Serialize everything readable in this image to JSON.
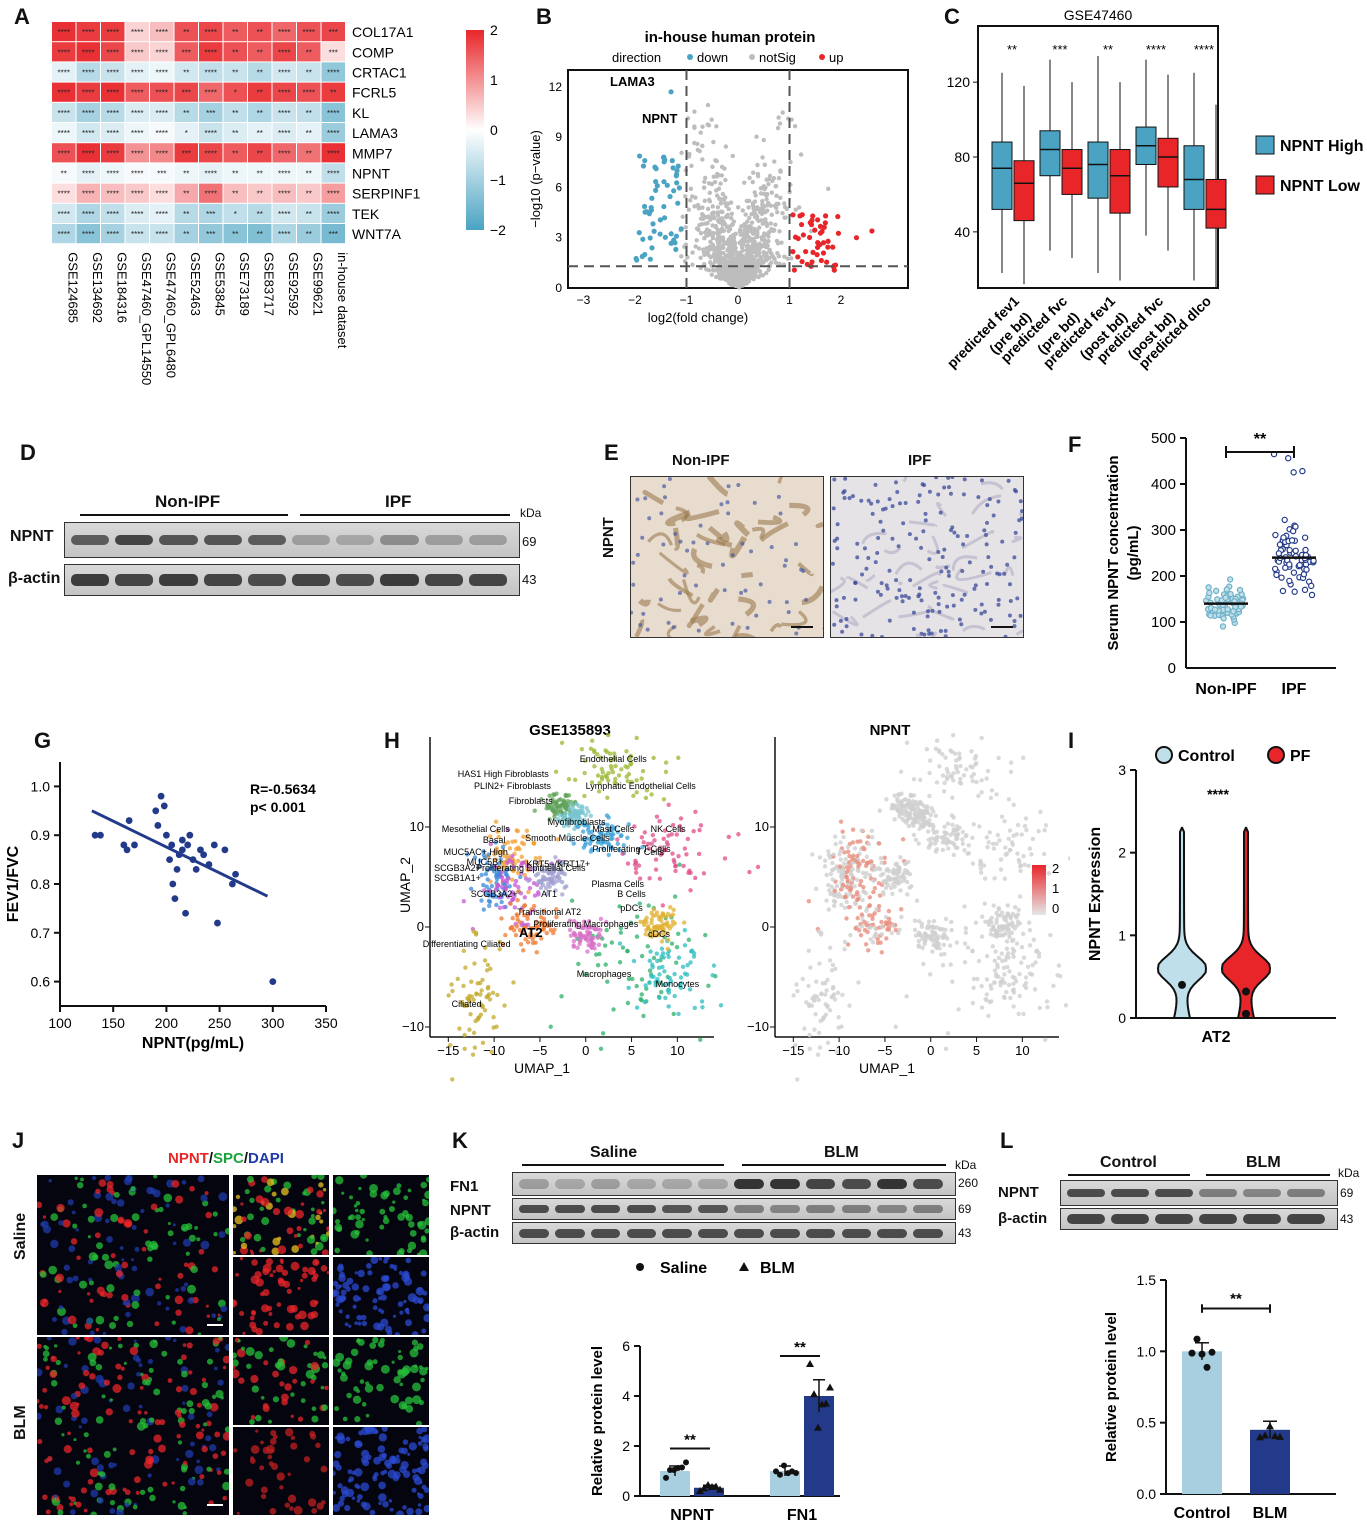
{
  "panels": {
    "A": {
      "label": "A",
      "genes": [
        "COL17A1",
        "COMP",
        "CRTAC1",
        "FCRL5",
        "KL",
        "LAMA3",
        "MMP7",
        "NPNT",
        "SERPINF1",
        "TEK",
        "WNT7A"
      ],
      "datasets": [
        "GSE124685",
        "GSE134692",
        "GSE184316",
        "GSE47460_GPL14550",
        "GSE47460_GPL6480",
        "GSE52463",
        "GSE53845",
        "GSE73189",
        "GSE83717",
        "GSE92592",
        "GSE99621",
        "in-house dataset"
      ],
      "values": [
        [
          1.9,
          1.8,
          1.8,
          0.4,
          0.6,
          1.6,
          1.7,
          1.5,
          1.6,
          1.4,
          1.6,
          1.7
        ],
        [
          1.8,
          1.9,
          1.7,
          0.5,
          0.4,
          1.5,
          1.8,
          1.6,
          1.5,
          1.7,
          1.5,
          0.3
        ],
        [
          -0.3,
          -0.8,
          -0.6,
          -0.3,
          -0.2,
          -0.5,
          -0.7,
          -0.6,
          -0.8,
          -0.5,
          -0.6,
          -1.2
        ],
        [
          1.9,
          1.8,
          1.9,
          1.5,
          1.6,
          1.7,
          1.4,
          1.6,
          1.8,
          1.7,
          1.6,
          1.8
        ],
        [
          -0.6,
          -1.0,
          -0.8,
          -0.4,
          -0.4,
          -0.8,
          -1.0,
          -0.7,
          -0.9,
          -0.6,
          -0.7,
          -1.3
        ],
        [
          -0.2,
          -0.5,
          -0.4,
          -0.2,
          -0.1,
          -0.3,
          -0.6,
          -0.4,
          -0.3,
          -0.4,
          -0.3,
          -1.1
        ],
        [
          1.6,
          1.9,
          1.8,
          1.0,
          1.1,
          1.8,
          1.7,
          1.5,
          1.7,
          1.4,
          1.3,
          1.9
        ],
        [
          -0.1,
          -0.3,
          -0.2,
          -0.1,
          -0.1,
          -0.2,
          -0.3,
          -0.2,
          -0.2,
          -0.2,
          -0.2,
          -0.7
        ],
        [
          0.3,
          0.7,
          0.6,
          0.5,
          0.3,
          0.8,
          1.3,
          0.6,
          0.5,
          0.6,
          0.5,
          0.9
        ],
        [
          -0.5,
          -0.9,
          -0.7,
          -0.4,
          -0.3,
          -0.8,
          -0.9,
          -0.7,
          -0.8,
          -0.5,
          -0.6,
          -1.1
        ],
        [
          -0.9,
          -1.3,
          -1.0,
          -0.6,
          -0.6,
          -1.0,
          -1.2,
          -1.3,
          -1.4,
          -0.9,
          -1.1,
          -1.5
        ]
      ],
      "stars": [
        [
          "****",
          "****",
          "****",
          "****",
          "****",
          "**",
          "****",
          "**",
          "**",
          "****",
          "****",
          "***"
        ],
        [
          "****",
          "****",
          "****",
          "****",
          "****",
          "***",
          "****",
          "**",
          "**",
          "****",
          "**",
          "***"
        ],
        [
          "****",
          "****",
          "****",
          "****",
          "****",
          "**",
          "****",
          "**",
          "**",
          "****",
          "**",
          "****"
        ],
        [
          "****",
          "****",
          "****",
          "****",
          "****",
          "***",
          "****",
          "*",
          "**",
          "****",
          "****",
          "**"
        ],
        [
          "****",
          "****",
          "****",
          "****",
          "****",
          "**",
          "***",
          "**",
          "**",
          "****",
          "**",
          "****"
        ],
        [
          "****",
          "****",
          "****",
          "****",
          "****",
          "*",
          "****",
          "**",
          "**",
          "****",
          "**",
          "****"
        ],
        [
          "****",
          "****",
          "****",
          "****",
          "****",
          "***",
          "****",
          "**",
          "**",
          "****",
          "**",
          "****"
        ],
        [
          "**",
          "****",
          "****",
          "****",
          "***",
          "**",
          "****",
          "**",
          "**",
          "****",
          "**",
          "****"
        ],
        [
          "****",
          "****",
          "****",
          "****",
          "****",
          "**",
          "****",
          "**",
          "**",
          "****",
          "**",
          "****"
        ],
        [
          "****",
          "****",
          "****",
          "****",
          "****",
          "**",
          "***",
          "*",
          "**",
          "****",
          "**",
          "****"
        ],
        [
          "****",
          "****",
          "****",
          "****",
          "****",
          "**",
          "***",
          "**",
          "**",
          "****",
          "**",
          "***"
        ]
      ],
      "legend_ticks": [
        "2",
        "1",
        "0",
        "−1",
        "−2"
      ],
      "colors": {
        "low": "#4aa3c2",
        "mid": "#ffffff",
        "high": "#e8262a"
      }
    },
    "B": {
      "label": "B",
      "title": "in-house human protein",
      "legend_title": "direction",
      "legend_items": [
        "down",
        "notSig",
        "up"
      ],
      "xlabel": "log2(fold change)",
      "ylabel": "−log10 (p−value)",
      "xticks": [
        "−3",
        "−2",
        "−1",
        "0",
        "1",
        "2"
      ],
      "yticks": [
        "0",
        "3",
        "6",
        "9",
        "12"
      ],
      "annotations": [
        "LAMA3",
        "NPNT"
      ],
      "colors": {
        "down": "#4aa3c2",
        "notSig": "#bdbdbd",
        "up": "#e8262a"
      }
    },
    "C": {
      "label": "C",
      "title": "GSE47460",
      "yticks": [
        "40",
        "80",
        "120"
      ],
      "categories": [
        "predicted fev1\n(pre bd)",
        "predicted fvc\n(pre bd)",
        "predicted fev1\n(post bd)",
        "predicted fvc\n(post bd)",
        "predicted dlco"
      ],
      "cat_line1": [
        "predicted fev1",
        "predicted fvc",
        "predicted fev1",
        "predicted fvc",
        "predicted dlco"
      ],
      "cat_line2": [
        "(pre bd)",
        "(pre bd)",
        "(post bd)",
        "(post bd)",
        ""
      ],
      "sig": [
        "**",
        "***",
        "**",
        "****",
        "****"
      ],
      "legend": [
        "NPNT High",
        "NPNT Low"
      ],
      "colors": {
        "high": "#4aa3c2",
        "low": "#e8262a"
      }
    },
    "D": {
      "label": "D",
      "group1": "Non-IPF",
      "group2": "IPF",
      "rows": [
        "NPNT",
        "β-actin"
      ],
      "kda_label": "kDa",
      "kda": [
        "69",
        "43"
      ]
    },
    "E": {
      "label": "E",
      "col1": "Non-IPF",
      "col2": "IPF",
      "row": "NPNT"
    },
    "F": {
      "label": "F",
      "ylabel": "Serum NPNT concentration\n(pg/mL)",
      "ylabel1": "Serum NPNT concentration",
      "ylabel2": "(pg/mL)",
      "yticks": [
        "100",
        "200",
        "300",
        "400",
        "500"
      ],
      "categories": [
        "Non-IPF",
        "IPF"
      ],
      "sig": "**",
      "means": [
        140,
        240
      ]
    },
    "G": {
      "label": "G",
      "ylabel": "FEV1/FVC",
      "xlabel": "NPNT(pg/mL)",
      "xticks": [
        "100",
        "150",
        "200",
        "250",
        "300",
        "350"
      ],
      "yticks": [
        "0.6",
        "0.7",
        "0.8",
        "0.9",
        "1.0"
      ],
      "stat1": "R=-0.5634",
      "stat2": "p< 0.001"
    },
    "H": {
      "label": "H",
      "title_left": "GSE135893",
      "title_right": "NPNT",
      "xlabel": "UMAP_1",
      "ylabel": "UMAP_2",
      "xticks": [
        "−15",
        "−10",
        "−5",
        "0",
        "5",
        "10"
      ],
      "yticks": [
        "10",
        "0",
        "−10"
      ],
      "clusters": [
        "Endothelial Cells",
        "HAS1 High Fibroblasts",
        "PLIN2+ Fibroblasts",
        "Lymphatic Endothelial Cells",
        "Fibroblasts",
        "Mesothelial Cells",
        "Myofibroblasts",
        "Mast Cells",
        "NK Cells",
        "Smooth Muscle Cells",
        "Basal",
        "MUC5AC+ High",
        "Proliferating T Cells",
        "T Cells",
        "MUC5B+",
        "KRT5−/KRT17+",
        "SCGB3A2+",
        "Proliferating Epithelial Cells",
        "SCGB1A1+",
        "Plasma Cells",
        "AT1",
        "B Cells",
        "SCGB3A2+",
        "pDCs",
        "Transitional AT2",
        "AT2",
        "cDCs",
        "Proliferating Macrophages",
        "Differentiating Ciliated",
        "Macrophages",
        "Monocytes",
        "Ciliated"
      ],
      "scale_ticks": [
        "2",
        "1",
        "0"
      ]
    },
    "I": {
      "label": "I",
      "legend": [
        "Control",
        "PF"
      ],
      "ylabel": "NPNT Expression",
      "yticks": [
        "0",
        "1",
        "2",
        "3"
      ],
      "xlabel": "AT2",
      "sig": "****"
    },
    "J": {
      "label": "J",
      "stain_npnt": "NPNT",
      "stain_spc": "SPC",
      "stain_dapi": "DAPI",
      "sep": "/",
      "rows": [
        "Saline",
        "BLM"
      ]
    },
    "K": {
      "label": "K",
      "group1": "Saline",
      "group2": "BLM",
      "rows": [
        "FN1",
        "NPNT",
        "β-actin"
      ],
      "kda_label": "kDa",
      "kda": [
        "260",
        "69",
        "43"
      ],
      "legend": [
        "Saline",
        "BLM"
      ],
      "ylabel": "Relative protein level",
      "yticks": [
        "0",
        "2",
        "4",
        "6"
      ],
      "categories": [
        "NPNT",
        "FN1"
      ],
      "sig": [
        "**",
        "**"
      ],
      "chart_data": {
        "type": "bar",
        "categories": [
          "NPNT",
          "FN1"
        ],
        "series": [
          {
            "name": "Saline",
            "values": [
              1.0,
              1.0
            ]
          },
          {
            "name": "BLM",
            "values": [
              0.33,
              4.0
            ]
          }
        ],
        "ylim": [
          0,
          6
        ]
      }
    },
    "L": {
      "label": "L",
      "group1": "Control",
      "group2": "BLM",
      "rows": [
        "NPNT",
        "β-actin"
      ],
      "kda_label": "kDa",
      "kda": [
        "69",
        "43"
      ],
      "ylabel": "Relative protein level",
      "yticks": [
        "0.0",
        "0.5",
        "1.0",
        "1.5"
      ],
      "categories": [
        "Control",
        "BLM"
      ],
      "sig": "**",
      "chart_data": {
        "type": "bar",
        "categories": [
          "Control",
          "BLM"
        ],
        "values": [
          1.0,
          0.45
        ],
        "ylim": [
          0,
          1.5
        ]
      }
    }
  }
}
